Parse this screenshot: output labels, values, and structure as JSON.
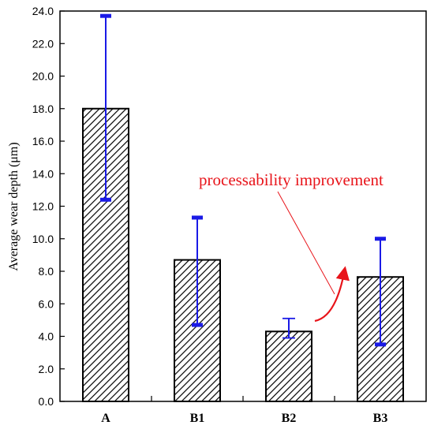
{
  "chart_data": {
    "type": "bar",
    "title": "",
    "xlabel": "",
    "ylabel": "Average wear depth  (μm)",
    "ylim": [
      0,
      24
    ],
    "y_ticks": [
      "0.0",
      "2.0",
      "4.0",
      "6.0",
      "8.0",
      "10.0",
      "12.0",
      "14.0",
      "16.0",
      "18.0",
      "20.0",
      "22.0",
      "24.0"
    ],
    "categories": [
      "A",
      "B1",
      "B2",
      "B3"
    ],
    "values": [
      18.0,
      8.7,
      4.3,
      7.65
    ],
    "error_bars": [
      {
        "low": 12.4,
        "high": 23.7
      },
      {
        "low": 4.7,
        "high": 11.3
      },
      {
        "low": 3.9,
        "high": 5.1
      },
      {
        "low": 3.5,
        "high": 10.0
      }
    ],
    "grid": false,
    "bar_fill": "diagonal-hatch",
    "colors": {
      "bar_edge": "#000000",
      "error_bar": "#1a1ae6",
      "annotation": "#e8141a"
    },
    "annotation": {
      "text": "processability improvement",
      "from_category": "B2",
      "to_category": "B3"
    }
  }
}
